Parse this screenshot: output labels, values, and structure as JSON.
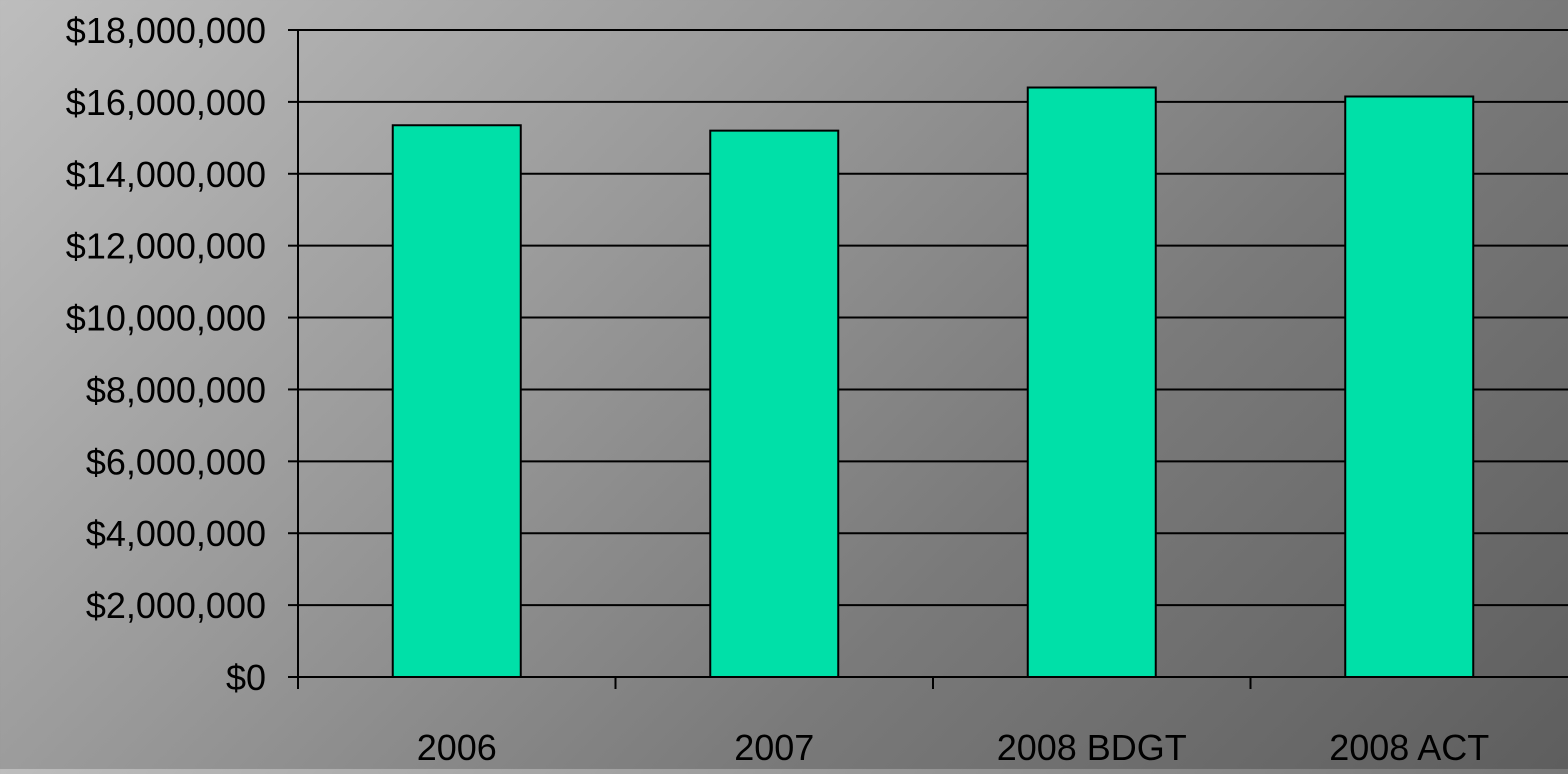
{
  "chart_data": {
    "type": "bar",
    "categories": [
      "2006",
      "2007",
      "2008 BDGT",
      "2008 ACT"
    ],
    "values": [
      15350000,
      15200000,
      16400000,
      16150000
    ],
    "ylim": [
      0,
      18000000
    ],
    "y_ticks": [
      {
        "value": 0,
        "label": "$0"
      },
      {
        "value": 2000000,
        "label": "$2,000,000"
      },
      {
        "value": 4000000,
        "label": "$4,000,000"
      },
      {
        "value": 6000000,
        "label": "$6,000,000"
      },
      {
        "value": 8000000,
        "label": "$8,000,000"
      },
      {
        "value": 10000000,
        "label": "$10,000,000"
      },
      {
        "value": 12000000,
        "label": "$12,000,000"
      },
      {
        "value": 14000000,
        "label": "$14,000,000"
      },
      {
        "value": 16000000,
        "label": "$16,000,000"
      },
      {
        "value": 18000000,
        "label": "$18,000,000"
      }
    ],
    "title": "",
    "xlabel": "",
    "ylabel": "",
    "grid": true,
    "legend": "none",
    "colors": {
      "bar_fill": "#00E0A8",
      "bar_stroke": "#000000",
      "gridline": "#000000",
      "axis": "#000000"
    }
  }
}
